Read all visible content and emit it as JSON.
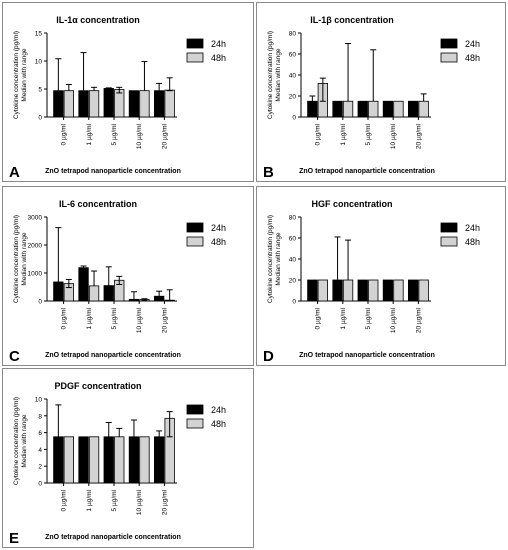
{
  "colors": {
    "h24": "#000000",
    "h48": "#d3d3d3",
    "axis": "#000000",
    "frame": "#8a8a8a"
  },
  "chart_data": [
    {
      "type": "bar",
      "panel_label": "A",
      "title": "IL-1α concentration",
      "xlabel": "ZnO tetrapod nanoparticle concentration",
      "ylabel_lines": [
        "Cytokine concentration (pg/ml)",
        "Median with range"
      ],
      "categories": [
        "0 µg/ml",
        "1 µg/ml",
        "5 µg/ml",
        "10 µg/ml",
        "20 µg/ml"
      ],
      "ylim": [
        0,
        15
      ],
      "yticks": [
        0,
        5,
        10,
        15
      ],
      "legend_position": "top-right",
      "series": [
        {
          "name": "24h",
          "values": [
            4.7,
            4.7,
            5.1,
            4.7,
            4.7
          ],
          "low": [
            4.7,
            4.7,
            4.7,
            4.7,
            3.9
          ],
          "high": [
            10.4,
            11.5,
            5.2,
            4.7,
            6.0
          ]
        },
        {
          "name": "48h",
          "values": [
            4.7,
            4.7,
            4.9,
            4.7,
            4.8
          ],
          "low": [
            4.7,
            4.7,
            4.3,
            4.7,
            4.7
          ],
          "high": [
            5.8,
            5.3,
            5.3,
            9.9,
            7.0
          ]
        }
      ]
    },
    {
      "type": "bar",
      "panel_label": "B",
      "title": "IL-1β concentration",
      "xlabel": "ZnO tetrapod nanoparticle concentration",
      "ylabel_lines": [
        "Cytokine concentration (pg/ml)",
        "Median with range"
      ],
      "categories": [
        "0 µg/ml",
        "1 µg/ml",
        "5 µg/ml",
        "10 µg/ml",
        "20 µg/ml"
      ],
      "ylim": [
        0,
        80
      ],
      "yticks": [
        0,
        20,
        40,
        60,
        80
      ],
      "legend_position": "top-right",
      "series": [
        {
          "name": "24h",
          "values": [
            15,
            15,
            15,
            15,
            15
          ],
          "low": [
            15,
            15,
            15,
            15,
            15
          ],
          "high": [
            20,
            15,
            15,
            15,
            15
          ]
        },
        {
          "name": "48h",
          "values": [
            32,
            15,
            15,
            15,
            15
          ],
          "low": [
            15,
            15,
            15,
            15,
            15
          ],
          "high": [
            37,
            70,
            64,
            15,
            22
          ]
        }
      ]
    },
    {
      "type": "bar",
      "panel_label": "C",
      "title": "IL-6 concentration",
      "xlabel": "ZnO tetrapod nanoparticle concentration",
      "ylabel_lines": [
        "Cytokine concentration (pg/ml)",
        "Median with range"
      ],
      "categories": [
        "0 µg/ml",
        "1 µg/ml",
        "5 µg/ml",
        "10 µg/ml",
        "20 µg/ml"
      ],
      "ylim": [
        0,
        3000
      ],
      "yticks": [
        0,
        1000,
        2000,
        3000
      ],
      "legend_position": "top-right",
      "series": [
        {
          "name": "24h",
          "values": [
            680,
            1190,
            550,
            60,
            170
          ],
          "low": [
            680,
            1120,
            550,
            30,
            30
          ],
          "high": [
            2620,
            1250,
            1220,
            330,
            350
          ]
        },
        {
          "name": "48h",
          "values": [
            620,
            540,
            740,
            50,
            30
          ],
          "low": [
            480,
            540,
            590,
            30,
            0
          ],
          "high": [
            770,
            1070,
            880,
            80,
            400
          ]
        }
      ]
    },
    {
      "type": "bar",
      "panel_label": "D",
      "title": "HGF concentration",
      "xlabel": "ZnO tetrapod nanoparticle concentration",
      "ylabel_lines": [
        "Cytokine concentration (pg/ml)",
        "Median with range"
      ],
      "categories": [
        "0 µg/ml",
        "1 µg/ml",
        "5 µg/ml",
        "10 µg/ml",
        "20 µg/ml"
      ],
      "ylim": [
        0,
        80
      ],
      "yticks": [
        0,
        20,
        40,
        60,
        80
      ],
      "legend_position": "top-right",
      "series": [
        {
          "name": "24h",
          "values": [
            20,
            20,
            20,
            20,
            20
          ],
          "low": [
            20,
            20,
            20,
            20,
            20
          ],
          "high": [
            20,
            61,
            20,
            20,
            20
          ]
        },
        {
          "name": "48h",
          "values": [
            20,
            20,
            20,
            20,
            20
          ],
          "low": [
            20,
            20,
            20,
            20,
            20
          ],
          "high": [
            20,
            58,
            20,
            20,
            20
          ]
        }
      ]
    },
    {
      "type": "bar",
      "panel_label": "E",
      "title": "PDGF concentration",
      "xlabel": "ZnO tetrapod nanoparticle concentration",
      "ylabel_lines": [
        "Cytokine concentration (pg/ml)",
        "Median with range"
      ],
      "categories": [
        "0 µg/ml",
        "1 µg/ml",
        "5 µg/ml",
        "10 µg/ml",
        "20 µg/ml"
      ],
      "ylim": [
        0,
        10
      ],
      "yticks": [
        0,
        2,
        4,
        6,
        8,
        10
      ],
      "legend_position": "top-right",
      "series": [
        {
          "name": "24h",
          "values": [
            5.5,
            5.5,
            5.5,
            5.5,
            5.5
          ],
          "low": [
            5.5,
            5.5,
            5.5,
            5.5,
            5.5
          ],
          "high": [
            9.3,
            5.5,
            7.2,
            7.5,
            6.2
          ]
        },
        {
          "name": "48h",
          "values": [
            5.5,
            5.5,
            5.5,
            5.5,
            7.7
          ],
          "low": [
            5.5,
            5.5,
            5.5,
            5.5,
            5.5
          ],
          "high": [
            5.5,
            5.5,
            6.5,
            5.5,
            8.5
          ]
        }
      ]
    }
  ]
}
